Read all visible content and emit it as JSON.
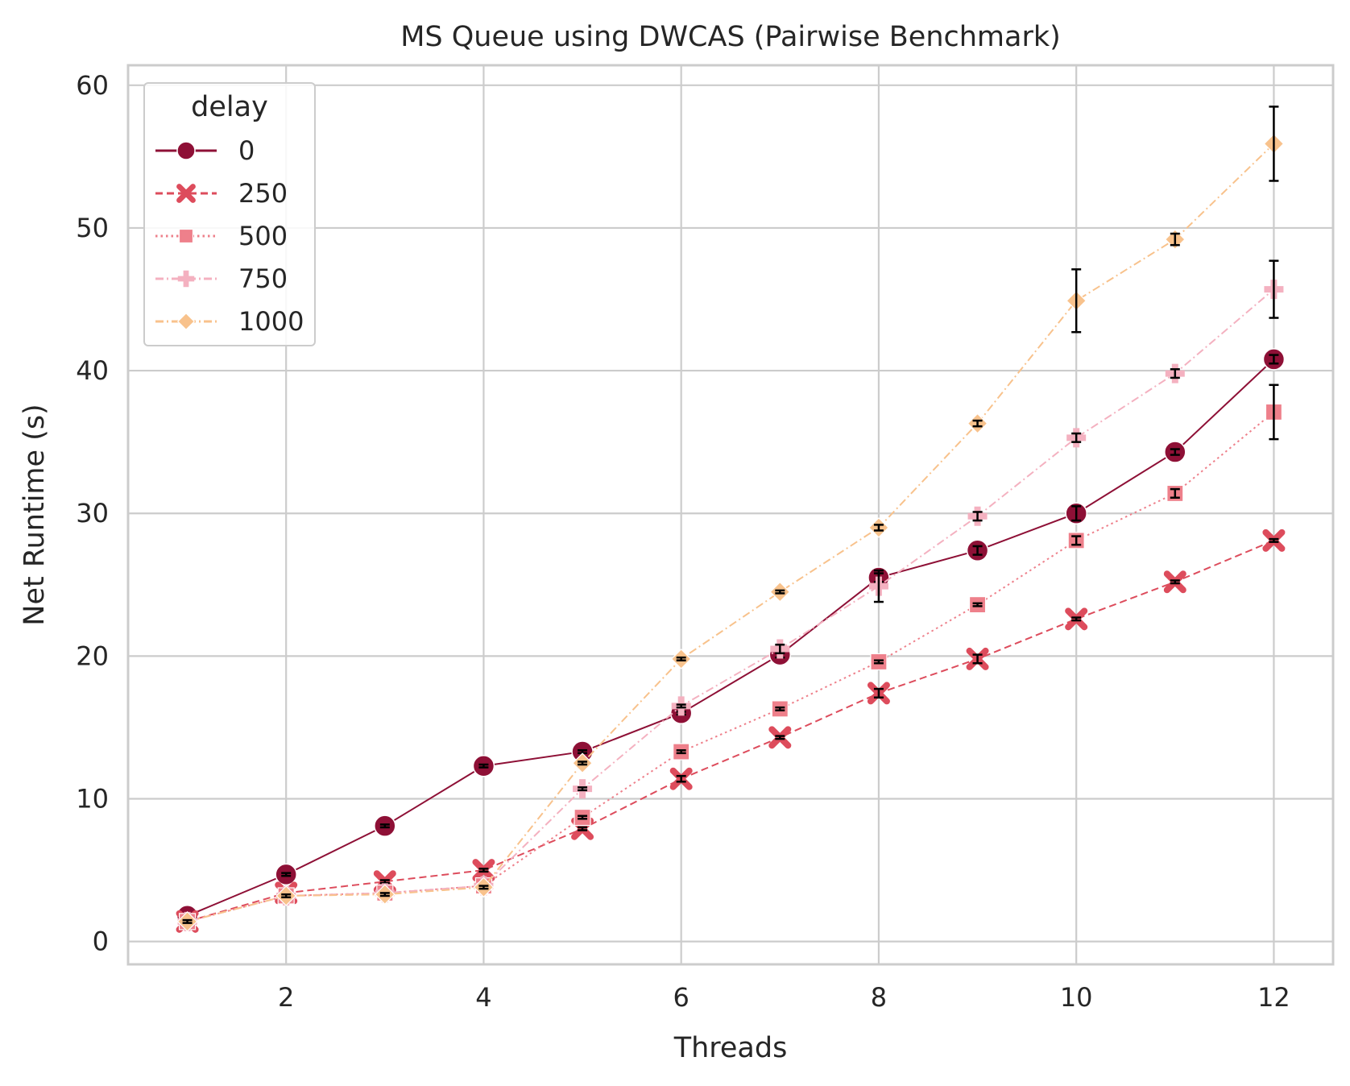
{
  "chart_data": {
    "type": "line",
    "title": "MS Queue using DWCAS (Pairwise Benchmark)",
    "xlabel": "Threads",
    "ylabel": "Net Runtime (s)",
    "xlim": [
      0.4,
      12.6
    ],
    "ylim": [
      -1.6,
      61.4
    ],
    "xticks": [
      2,
      4,
      6,
      8,
      10,
      12
    ],
    "yticks": [
      0,
      10,
      20,
      30,
      40,
      50,
      60
    ],
    "grid": true,
    "legend": {
      "title": "delay",
      "placement": "top-left"
    },
    "x": [
      1,
      2,
      3,
      4,
      5,
      6,
      7,
      8,
      9,
      10,
      11,
      12
    ],
    "series": [
      {
        "name": "0",
        "color": "#8e1036",
        "marker": "circle",
        "dash": "solid",
        "values": [
          1.8,
          4.7,
          8.1,
          12.3,
          13.3,
          16.0,
          20.1,
          25.5,
          27.4,
          30.0,
          34.3,
          40.8
        ],
        "errors": [
          0.1,
          0.1,
          0.1,
          0.1,
          0.1,
          0.1,
          0.2,
          0.3,
          0.3,
          0.5,
          0.2,
          0.3
        ]
      },
      {
        "name": "250",
        "color": "#dd4c5c",
        "marker": "x",
        "dash": "dashed",
        "values": [
          1.4,
          3.4,
          4.2,
          5.0,
          7.9,
          11.4,
          14.3,
          17.4,
          19.8,
          22.6,
          25.2,
          28.1
        ],
        "errors": [
          0.1,
          0.1,
          0.1,
          0.1,
          0.1,
          0.2,
          0.1,
          0.3,
          0.3,
          0.1,
          0.1,
          0.1
        ]
      },
      {
        "name": "500",
        "color": "#ee808b",
        "marker": "square",
        "dash": "dotted",
        "values": [
          1.4,
          3.2,
          3.4,
          3.9,
          8.7,
          13.3,
          16.3,
          19.6,
          23.6,
          28.1,
          31.4,
          37.1
        ],
        "errors": [
          0.1,
          0.1,
          0.1,
          0.1,
          0.1,
          0.1,
          0.1,
          0.1,
          0.1,
          0.3,
          0.3,
          1.9
        ]
      },
      {
        "name": "750",
        "color": "#f4b1c0",
        "marker": "plus",
        "dash": "dashdot",
        "values": [
          1.4,
          3.2,
          3.4,
          3.9,
          10.7,
          16.5,
          20.5,
          24.9,
          29.8,
          35.3,
          39.8,
          45.7
        ],
        "errors": [
          0.1,
          0.1,
          0.1,
          0.1,
          0.1,
          0.1,
          0.3,
          1.1,
          0.3,
          0.3,
          0.3,
          2.0
        ]
      },
      {
        "name": "1000",
        "color": "#f8c28c",
        "marker": "diamond",
        "dash": "dashdot",
        "values": [
          1.4,
          3.2,
          3.3,
          3.8,
          12.5,
          19.8,
          24.5,
          29.0,
          36.3,
          44.9,
          49.2,
          55.9
        ],
        "errors": [
          0.1,
          0.1,
          0.1,
          0.1,
          0.1,
          0.1,
          0.1,
          0.2,
          0.2,
          2.2,
          0.4,
          2.6
        ]
      }
    ]
  }
}
